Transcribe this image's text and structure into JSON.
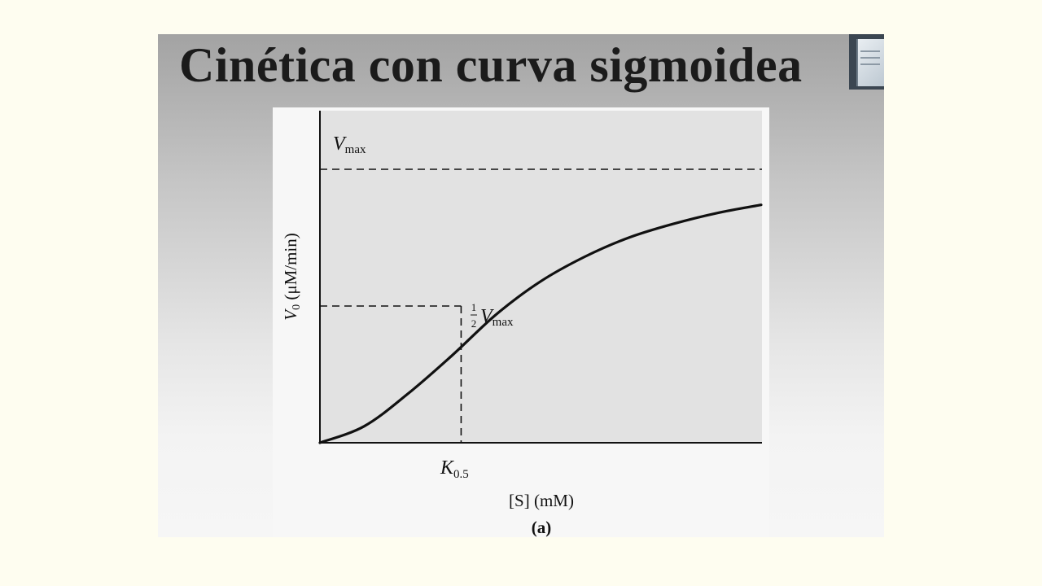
{
  "slide": {
    "title": "Cinética con curva sigmoidea"
  },
  "chart_data": {
    "type": "line",
    "title": "",
    "xlabel": "[S] (mM)",
    "ylabel": "V0 (μM/min)",
    "caption": "(a)",
    "x_ticks_shown": false,
    "y_ticks_shown": false,
    "grid": false,
    "series": [
      {
        "curve": "sigmoid",
        "x": [
          0,
          0.1,
          0.2,
          0.3,
          0.4,
          0.5,
          0.6,
          0.7,
          0.8,
          0.9,
          1.0
        ],
        "y": [
          0,
          0.06,
          0.18,
          0.32,
          0.47,
          0.59,
          0.68,
          0.75,
          0.8,
          0.84,
          0.87
        ]
      }
    ],
    "reference_lines": {
      "vmax": {
        "y": 1.0,
        "label_main": "V",
        "label_sub": "max"
      },
      "half_vmax": {
        "y": 0.5,
        "label_frac_num": "1",
        "label_frac_den": "2",
        "label_main": "V",
        "label_sub": "max"
      },
      "k05": {
        "x": 0.32,
        "label_main": "K",
        "label_sub": "0.5"
      }
    },
    "axis_label_parts": {
      "y_v": "V",
      "y_sub": "0",
      "y_unit": " (μM/min)",
      "x_s": "[S]",
      "x_unit": " (mM)"
    },
    "colors": {
      "curve": "#111111",
      "axes": "#111111",
      "plot_bg": "#e2e2e2"
    }
  }
}
